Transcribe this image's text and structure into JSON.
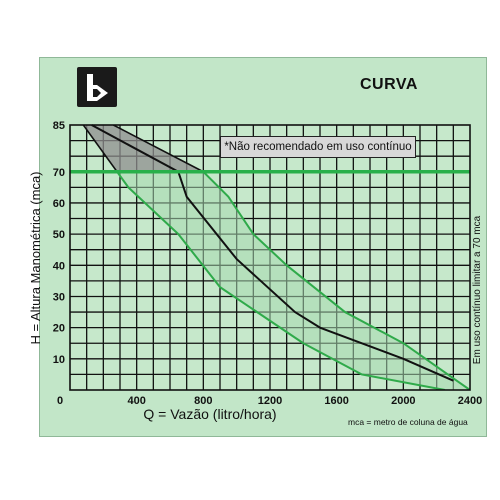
{
  "title": "CURVA",
  "note": "*Não recomendado em uso contínuo",
  "footnote": "mca = metro de coluna de água",
  "colors": {
    "band_fill": "#8f8f8f",
    "band_edge": "#2faa4a",
    "curve": "#111111",
    "limit_line": "#28b04a",
    "background": "#c2e6c8"
  },
  "chart_data": {
    "type": "line",
    "title": "CURVA",
    "xlabel": "Q = Vazão (litro/hora)",
    "ylabel": "H = Altura Manométrica (mca)",
    "right_label": "Em uso contínuo limitar a 70 mca",
    "xlim": [
      0,
      2400
    ],
    "ylim": [
      0,
      85
    ],
    "x_ticks": [
      "0",
      "400",
      "800",
      "1200",
      "1600",
      "2000",
      "2400"
    ],
    "y_ticks": [
      "0",
      "10",
      "20",
      "30",
      "40",
      "50",
      "60",
      "70",
      "85"
    ],
    "grid": true,
    "limit_line_y": 70,
    "series": [
      {
        "role": "lower-bound",
        "x": [
          80,
          350,
          650,
          900,
          1400,
          1750,
          2250
        ],
        "y": [
          85,
          65,
          50,
          33,
          15,
          5,
          0
        ]
      },
      {
        "role": "curve",
        "x": [
          130,
          650,
          700,
          1000,
          1350,
          1500,
          2000,
          2300
        ],
        "y": [
          85,
          70,
          62,
          42,
          25,
          20,
          10,
          3
        ]
      },
      {
        "role": "upper-bound",
        "x": [
          260,
          800,
          950,
          1100,
          1300,
          1650,
          2000,
          2400
        ],
        "y": [
          85,
          70,
          62,
          50,
          40,
          25,
          15,
          0
        ]
      }
    ]
  }
}
